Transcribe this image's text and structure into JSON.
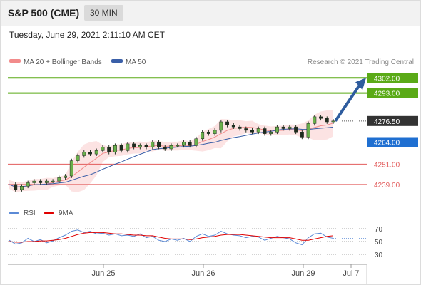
{
  "header": {
    "title": "S&P 500 (CME)",
    "interval": "30 MIN"
  },
  "datetime": "Tuesday, June 29, 2021 2:11:10 AM CET",
  "legend": {
    "ma20": "MA 20 + Bollinger Bands",
    "ma50": "MA 50"
  },
  "copyright": "Research © 2021 Trading Central",
  "colors": {
    "green": "#5aaa17",
    "blue": "#1f6fd1",
    "red": "#e25b5b",
    "current": "#333333",
    "ma20": "#f28b8b",
    "ma50": "#3a5fa8",
    "band": "#fbd9d9",
    "arrow": "#2e5c9e",
    "rsi": "#5b8ad6",
    "rsi_ma": "#e00000"
  },
  "chart_data": [
    {
      "type": "candlestick",
      "ylim": [
        4228,
        4308
      ],
      "x_ticks": [
        "Jun 25",
        "Jun 26",
        "Jun 29",
        "Jul 7"
      ],
      "levels": [
        {
          "label": "4302.00",
          "value": 4302.0,
          "style": "resistance"
        },
        {
          "label": "4293.00",
          "value": 4293.0,
          "style": "resistance"
        },
        {
          "label": "4276.50",
          "value": 4276.5,
          "style": "current"
        },
        {
          "label": "4264.00",
          "value": 4264.0,
          "style": "pivot"
        },
        {
          "label": "4251.00",
          "value": 4251.0,
          "style": "support"
        },
        {
          "label": "4239.00",
          "value": 4239.0,
          "style": "support"
        }
      ],
      "close_path": [
        4239,
        4236,
        4238,
        4240,
        4241,
        4240,
        4241,
        4241,
        4243,
        4244,
        4253,
        4256,
        4258,
        4257,
        4259,
        4261,
        4258,
        4262,
        4259,
        4263,
        4261,
        4262,
        4261,
        4264,
        4261,
        4260,
        4262,
        4262,
        4264,
        4262,
        4266,
        4270,
        4269,
        4271,
        4276,
        4274,
        4273,
        4272,
        4271,
        4270,
        4272,
        4269,
        4270,
        4273,
        4272,
        4273,
        4270,
        4267,
        4275,
        4279,
        4278,
        4276,
        4276.5
      ],
      "series": [
        {
          "name": "MA 20 + Bollinger Bands"
        },
        {
          "name": "MA 50"
        }
      ]
    },
    {
      "type": "line",
      "ylim": [
        20,
        80
      ],
      "y_ticks": [
        "70",
        "50",
        "30"
      ],
      "reference_levels": [
        70,
        50,
        30
      ],
      "series": [
        {
          "name": "RSI",
          "values": [
            52,
            46,
            48,
            55,
            50,
            53,
            48,
            51,
            56,
            60,
            66,
            68,
            64,
            66,
            62,
            63,
            60,
            62,
            59,
            60,
            58,
            62,
            56,
            58,
            52,
            50,
            54,
            52,
            55,
            50,
            58,
            62,
            58,
            60,
            66,
            62,
            60,
            59,
            56,
            58,
            57,
            52,
            55,
            58,
            56,
            54,
            48,
            45,
            56,
            62,
            63,
            57,
            55
          ]
        },
        {
          "name": "9MA",
          "values": [
            50,
            49,
            49,
            50,
            50,
            51,
            51,
            52,
            53,
            55,
            58,
            61,
            63,
            64,
            64,
            64,
            63,
            62,
            62,
            61,
            60,
            60,
            59,
            59,
            57,
            55,
            54,
            54,
            54,
            53,
            54,
            56,
            57,
            58,
            60,
            61,
            61,
            61,
            60,
            59,
            58,
            57,
            56,
            56,
            56,
            56,
            54,
            52,
            52,
            54,
            56,
            58,
            59
          ]
        }
      ]
    }
  ]
}
